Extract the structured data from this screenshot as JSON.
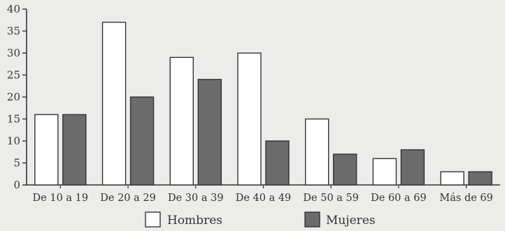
{
  "chart_data": {
    "type": "bar",
    "title": "",
    "xlabel": "",
    "ylabel": "",
    "categories": [
      "De 10 a 19",
      "De 20 a 29",
      "De 30 a 39",
      "De 40 a 49",
      "De 50 a 59",
      "De 60 a 69",
      "Más de 69"
    ],
    "series": [
      {
        "name": "Hombres",
        "values": [
          16,
          37,
          29,
          30,
          15,
          6,
          3
        ],
        "color": "#ffffff"
      },
      {
        "name": "Mujeres",
        "values": [
          16,
          20,
          24,
          10,
          7,
          8,
          3
        ],
        "color": "#6b6b6b"
      }
    ],
    "ylim": [
      0,
      40
    ],
    "yticks": [
      0,
      5,
      10,
      15,
      20,
      25,
      30,
      35,
      40
    ],
    "grid": false,
    "legend_position": "bottom-center"
  }
}
